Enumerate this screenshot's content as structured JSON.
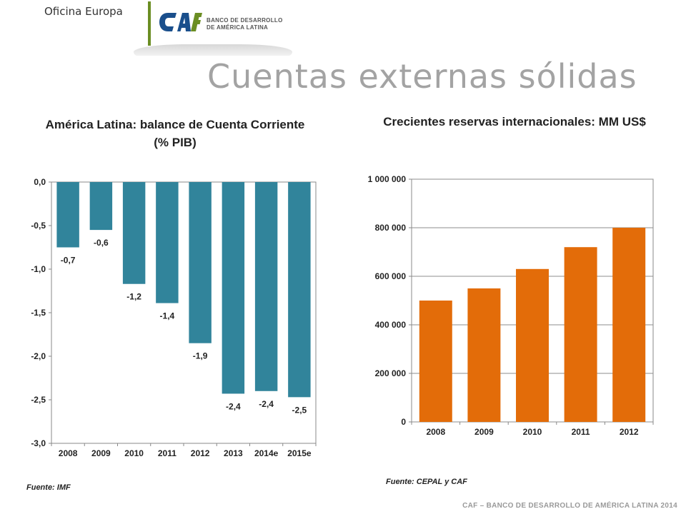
{
  "header": {
    "office": "Oficina Europa",
    "logo": {
      "mark": "CAF",
      "line1": "BANCO DE DESARROLLO",
      "line2": "DE AMÉRICA LATINA",
      "mark_color": "#1a4f8c",
      "accent_color": "#6b8e23"
    },
    "title": "Cuentas externas sólidas"
  },
  "chart_data": [
    {
      "type": "bar",
      "title": "América Latina: balance de Cuenta Corriente  (% PIB)",
      "categories": [
        "2008",
        "2009",
        "2010",
        "2011",
        "2012",
        "2013",
        "2014e",
        "2015e"
      ],
      "values": [
        -0.75,
        -0.55,
        -1.17,
        -1.39,
        -1.85,
        -2.43,
        -2.4,
        -2.47
      ],
      "data_labels": [
        "-0,7",
        "-0,6",
        "-1,2",
        "-1,4",
        "-1,9",
        "-2,4",
        "-2,4",
        "-2,5"
      ],
      "ylim": [
        -3.0,
        0.0
      ],
      "yticks": [
        0.0,
        -0.5,
        -1.0,
        -1.5,
        -2.0,
        -2.5,
        -3.0
      ],
      "ytick_labels": [
        "0,0",
        "-0,5",
        "-1,0",
        "-1,5",
        "-2,0",
        "-2,5",
        "-3,0"
      ],
      "color": "#31849b",
      "grid": false,
      "source": "Fuente: IMF"
    },
    {
      "type": "bar",
      "title": "Crecientes reservas internacionales:  MM US$",
      "categories": [
        "2008",
        "2009",
        "2010",
        "2011",
        "2012"
      ],
      "values": [
        500000,
        550000,
        630000,
        720000,
        800000
      ],
      "ylim": [
        0,
        1000000
      ],
      "yticks": [
        0,
        200000,
        400000,
        600000,
        800000,
        1000000
      ],
      "ytick_labels": [
        "0",
        "200 000",
        "400 000",
        "600 000",
        "800 000",
        "1 000 000"
      ],
      "color": "#e36c09",
      "grid": true,
      "source": "Fuente: CEPAL y CAF"
    }
  ],
  "footer": "CAF – BANCO DE DESARROLLO DE AMÉRICA LATINA 2014"
}
